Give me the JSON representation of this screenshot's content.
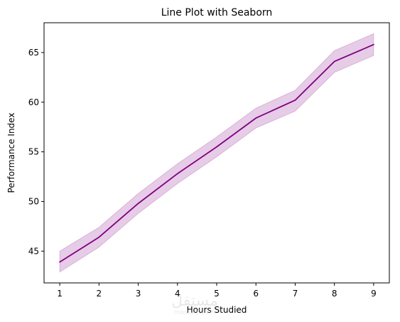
{
  "chart_data": {
    "type": "line",
    "title": "Line Plot with Seaborn",
    "xlabel": "Hours Studied",
    "ylabel": "Performance Index",
    "x": [
      1,
      2,
      3,
      4,
      5,
      6,
      7,
      8,
      9
    ],
    "series": [
      {
        "values": [
          43.9,
          46.4,
          49.8,
          52.8,
          55.5,
          58.4,
          60.2,
          64.1,
          65.8
        ],
        "ci_lower": [
          42.9,
          45.4,
          48.8,
          51.8,
          54.5,
          57.4,
          59.1,
          63.0,
          64.7
        ],
        "ci_upper": [
          45.0,
          47.4,
          50.8,
          53.8,
          56.5,
          59.4,
          61.2,
          65.2,
          66.9
        ]
      }
    ],
    "xlim": [
      0.6,
      9.4
    ],
    "ylim": [
      41.8,
      68.0
    ],
    "xticks": [
      1,
      2,
      3,
      4,
      5,
      6,
      7,
      8,
      9
    ],
    "yticks": [
      45,
      50,
      55,
      60,
      65
    ],
    "grid": false,
    "legend": "none",
    "colors": {
      "line": "#800080",
      "band": "#800080"
    }
  },
  "watermark": {
    "text": "مستقل",
    "subtext": "mostaql.com"
  }
}
